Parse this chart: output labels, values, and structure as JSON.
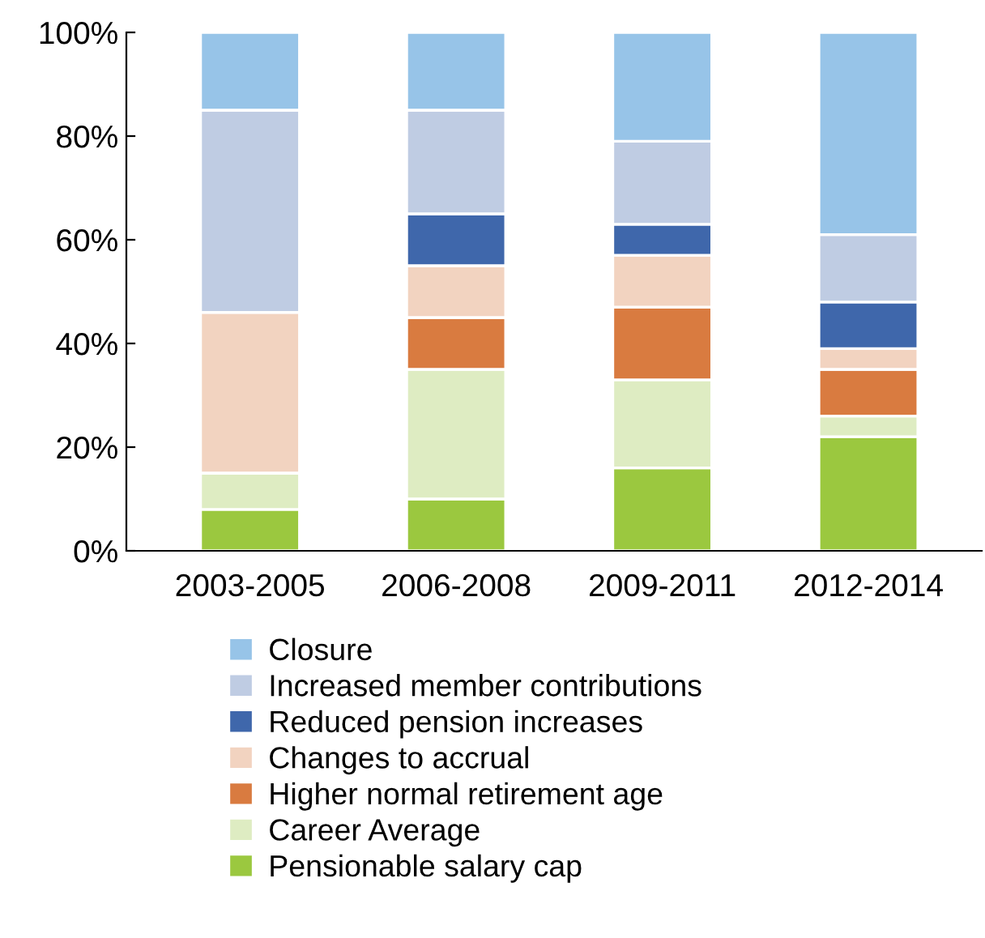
{
  "chart_data": {
    "type": "bar",
    "stacked": true,
    "categories": [
      "2003-2005",
      "2006-2008",
      "2009-2011",
      "2012-2014"
    ],
    "series": [
      {
        "name": "Pensionable salary cap",
        "color": "#9bc83f",
        "values": [
          8,
          10,
          16,
          22
        ]
      },
      {
        "name": "Career Average",
        "color": "#deecc2",
        "values": [
          7,
          25,
          17,
          4
        ]
      },
      {
        "name": "Higher normal retirement age",
        "color": "#d97b40",
        "values": [
          0,
          10,
          14,
          9
        ]
      },
      {
        "name": "Changes to accrual",
        "color": "#f2d3c0",
        "values": [
          31,
          10,
          10,
          4
        ]
      },
      {
        "name": "Reduced pension increases",
        "color": "#3f67ab",
        "values": [
          0,
          10,
          6,
          9
        ]
      },
      {
        "name": "Increased member contributions",
        "color": "#bfcce3",
        "values": [
          39,
          20,
          16,
          13
        ]
      },
      {
        "name": "Closure",
        "color": "#97c4e8",
        "values": [
          15,
          15,
          21,
          39
        ]
      }
    ],
    "ylim": [
      0,
      100
    ],
    "yticks": [
      {
        "value": 0,
        "label": "0%"
      },
      {
        "value": 20,
        "label": "20%"
      },
      {
        "value": 40,
        "label": "40%"
      },
      {
        "value": 60,
        "label": "60%"
      },
      {
        "value": 80,
        "label": "80%"
      },
      {
        "value": 100,
        "label": "100%"
      }
    ],
    "grid": false,
    "legend": "bottom"
  }
}
